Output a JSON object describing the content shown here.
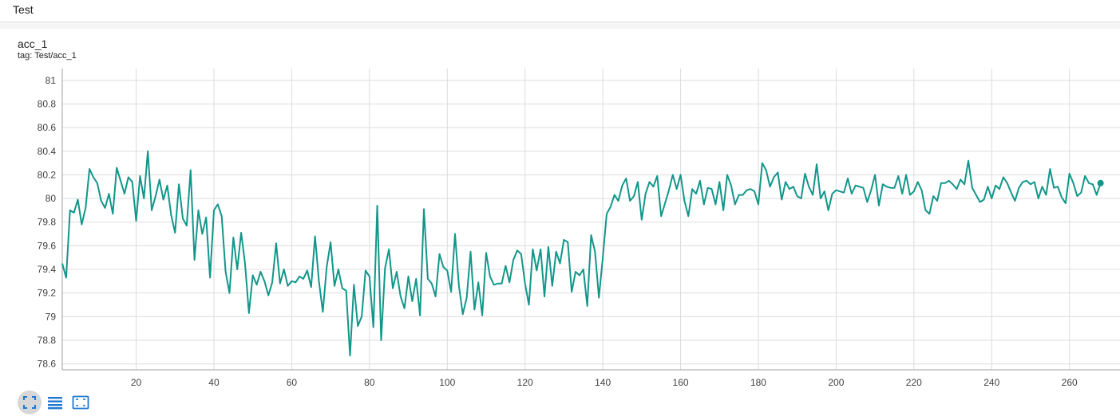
{
  "header": {
    "title": "Test"
  },
  "card": {
    "title": "acc_1",
    "subtitle": "tag: Test/acc_1"
  },
  "toolbar": {
    "buttons": [
      {
        "icon": "fullscreen-icon"
      },
      {
        "icon": "list-icon"
      },
      {
        "icon": "fit-domain-icon"
      }
    ]
  },
  "colors": {
    "line": "#12968a",
    "grid": "#dcdcdc",
    "axis": "#9e9e9e",
    "icon": "#1f77d0"
  },
  "chart_data": {
    "type": "line",
    "title": "acc_1",
    "xlabel": "",
    "ylabel": "",
    "xlim": [
      1,
      273
    ],
    "ylim": [
      78.55,
      81.1
    ],
    "grid": true,
    "legend": "none",
    "x_ticks": [
      20,
      40,
      60,
      80,
      100,
      120,
      140,
      160,
      180,
      200,
      220,
      240,
      260
    ],
    "y_ticks": [
      78.6,
      78.8,
      79,
      79.2,
      79.4,
      79.6,
      79.8,
      80,
      80.2,
      80.4,
      80.6,
      80.8,
      81
    ],
    "y_tick_labels": [
      "78.6",
      "78.8",
      "79",
      "79.2",
      "79.4",
      "79.6",
      "79.8",
      "80",
      "80.2",
      "80.4",
      "80.6",
      "80.8",
      "81"
    ],
    "x_start": 1,
    "x_step": 1,
    "series": [
      {
        "name": "",
        "values": [
          79.45,
          79.33,
          79.9,
          79.88,
          79.99,
          79.78,
          79.92,
          80.25,
          80.18,
          80.13,
          79.98,
          79.92,
          80.04,
          79.87,
          80.26,
          80.15,
          80.04,
          80.18,
          80.14,
          79.81,
          80.19,
          80.0,
          80.4,
          79.9,
          80.02,
          80.16,
          79.99,
          80.11,
          79.86,
          79.71,
          80.12,
          79.83,
          79.77,
          80.24,
          79.48,
          79.9,
          79.7,
          79.84,
          79.33,
          79.9,
          79.95,
          79.85,
          79.38,
          79.2,
          79.67,
          79.4,
          79.71,
          79.45,
          79.03,
          79.35,
          79.27,
          79.38,
          79.3,
          79.18,
          79.29,
          79.62,
          79.28,
          79.4,
          79.26,
          79.3,
          79.29,
          79.34,
          79.32,
          79.39,
          79.25,
          79.68,
          79.3,
          79.04,
          79.42,
          79.63,
          79.26,
          79.4,
          79.24,
          79.22,
          78.67,
          79.27,
          78.92,
          79.0,
          79.39,
          79.34,
          78.91,
          79.94,
          78.8,
          79.41,
          79.57,
          79.24,
          79.38,
          79.17,
          79.07,
          79.34,
          79.13,
          79.32,
          79.01,
          79.91,
          79.32,
          79.28,
          79.17,
          79.53,
          79.42,
          79.39,
          79.21,
          79.7,
          79.26,
          79.02,
          79.16,
          79.55,
          79.06,
          79.29,
          79.01,
          79.54,
          79.34,
          79.27,
          79.28,
          79.28,
          79.43,
          79.29,
          79.48,
          79.56,
          79.53,
          79.28,
          79.1,
          79.57,
          79.39,
          79.57,
          79.17,
          79.59,
          79.26,
          79.55,
          79.45,
          79.65,
          79.63,
          79.21,
          79.38,
          79.35,
          79.4,
          79.09,
          79.69,
          79.55,
          79.16,
          79.5,
          79.87,
          79.93,
          80.03,
          79.98,
          80.11,
          80.17,
          79.98,
          80.02,
          80.14,
          79.82,
          80.04,
          80.14,
          80.1,
          80.19,
          79.85,
          79.96,
          80.07,
          80.2,
          80.08,
          80.2,
          79.98,
          79.85,
          80.08,
          80.04,
          80.15,
          79.95,
          80.09,
          80.08,
          79.95,
          80.14,
          79.9,
          80.2,
          80.11,
          79.95,
          80.03,
          80.03,
          80.07,
          80.08,
          80.06,
          79.95,
          80.3,
          80.24,
          80.1,
          80.18,
          80.22,
          79.99,
          80.14,
          80.08,
          80.1,
          80.02,
          80.0,
          80.21,
          80.1,
          80.03,
          80.29,
          80.0,
          80.06,
          79.9,
          80.04,
          80.07,
          80.06,
          80.05,
          80.17,
          80.04,
          80.11,
          80.1,
          80.09,
          79.97,
          80.07,
          80.2,
          79.94,
          80.12,
          80.1,
          80.09,
          80.09,
          80.19,
          80.04,
          80.2,
          80.03,
          80.06,
          80.14,
          80.07,
          79.9,
          79.87,
          80.02,
          79.98,
          80.13,
          80.13,
          80.15,
          80.12,
          80.08,
          80.16,
          80.12,
          80.32,
          80.09,
          80.03,
          79.97,
          79.99,
          80.1,
          80.0,
          80.11,
          80.08,
          80.18,
          80.13,
          80.05,
          79.98,
          80.09,
          80.14,
          80.15,
          80.12,
          80.14,
          80.0,
          80.1,
          80.03,
          80.25,
          80.09,
          80.1,
          80.01,
          79.96,
          80.21,
          80.13,
          80.02,
          80.05,
          80.19,
          80.13,
          80.12,
          80.03,
          80.13
        ]
      }
    ]
  }
}
